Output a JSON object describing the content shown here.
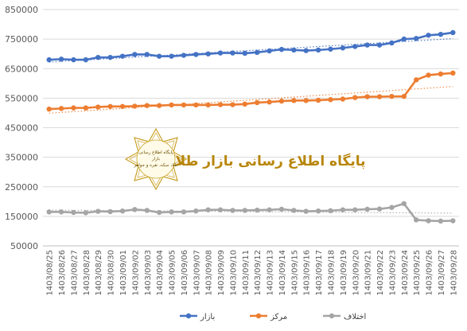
{
  "chart_data": {
    "type": "line",
    "categories": [
      "1403/08/25",
      "1403/08/26",
      "1403/08/27",
      "1403/08/28",
      "1403/08/29",
      "1403/08/30",
      "1403/09/01",
      "1403/09/02",
      "1403/09/03",
      "1403/09/04",
      "1403/09/05",
      "1403/09/06",
      "1403/09/07",
      "1403/09/08",
      "1403/09/09",
      "1403/09/10",
      "1403/09/11",
      "1403/09/12",
      "1403/09/13",
      "1403/09/14",
      "1403/09/15",
      "1403/09/16",
      "1403/09/17",
      "1403/09/18",
      "1403/09/19",
      "1403/09/20",
      "1403/09/21",
      "1403/09/22",
      "1403/09/23",
      "1403/09/24",
      "1403/09/25",
      "1403/09/26",
      "1403/09/27",
      "1403/09/28"
    ],
    "series": [
      {
        "name": "بازار",
        "color": "#4472c4",
        "values": [
          680000,
          682000,
          680000,
          680000,
          688000,
          688000,
          692000,
          698000,
          698000,
          692000,
          692000,
          695000,
          698000,
          700000,
          703000,
          703000,
          702000,
          705000,
          710000,
          715000,
          713000,
          711000,
          713000,
          716000,
          720000,
          725000,
          730000,
          730000,
          737000,
          750000,
          752000,
          763000,
          766000,
          772000
        ]
      },
      {
        "name": "مرکز",
        "color": "#ed7d31",
        "values": [
          513000,
          515000,
          517000,
          517000,
          520000,
          522000,
          522000,
          523000,
          525000,
          525000,
          527000,
          527000,
          527000,
          527000,
          528000,
          528000,
          530000,
          535000,
          537000,
          540000,
          542000,
          542000,
          543000,
          545000,
          547000,
          552000,
          555000,
          555000,
          556000,
          556000,
          612000,
          628000,
          632000,
          635000
        ]
      },
      {
        "name": "اختلاف",
        "color": "#a5a5a5",
        "values": [
          165000,
          165000,
          163000,
          162000,
          167000,
          166000,
          168000,
          173000,
          170000,
          163000,
          165000,
          165000,
          168000,
          172000,
          172000,
          170000,
          170000,
          171000,
          172000,
          174000,
          170000,
          167000,
          168000,
          169000,
          172000,
          172000,
          174000,
          175000,
          180000,
          193000,
          138000,
          135000,
          134000,
          135000
        ]
      }
    ],
    "y_ticks": [
      "50000",
      "150000",
      "250000",
      "350000",
      "450000",
      "550000",
      "650000",
      "750000",
      "850000"
    ],
    "ylim": [
      50000,
      850000
    ],
    "grid": "horizontal",
    "legend_position": "bottom",
    "trendlines": "dotted trendline for each series"
  },
  "watermark": {
    "title": "پایگاه اطلاع رسانی بازار طلا",
    "seal_lines": [
      "پایگاه اطلاع رسانی",
      "بازار",
      "طلا، سکه، نقره و جواهر"
    ]
  }
}
